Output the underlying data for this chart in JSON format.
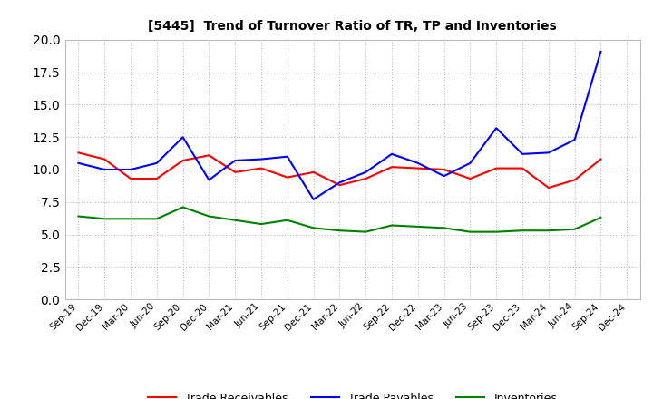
{
  "title": "[5445]  Trend of Turnover Ratio of TR, TP and Inventories",
  "x_labels": [
    "Sep-19",
    "Dec-19",
    "Mar-20",
    "Jun-20",
    "Sep-20",
    "Dec-20",
    "Mar-21",
    "Jun-21",
    "Sep-21",
    "Dec-21",
    "Mar-22",
    "Jun-22",
    "Sep-22",
    "Dec-22",
    "Mar-23",
    "Jun-23",
    "Sep-23",
    "Dec-23",
    "Mar-24",
    "Jun-24",
    "Sep-24",
    "Dec-24"
  ],
  "trade_receivables": [
    11.3,
    10.8,
    9.3,
    9.3,
    10.7,
    11.1,
    9.8,
    10.1,
    9.4,
    9.8,
    8.8,
    9.3,
    10.2,
    10.1,
    10.0,
    9.3,
    10.1,
    10.1,
    8.6,
    9.2,
    10.8,
    null
  ],
  "trade_payables": [
    10.5,
    10.0,
    10.0,
    10.5,
    12.5,
    9.2,
    10.7,
    10.8,
    11.0,
    7.7,
    9.0,
    9.8,
    11.2,
    10.5,
    9.5,
    10.5,
    13.2,
    11.2,
    11.3,
    12.3,
    19.1,
    null
  ],
  "inventories": [
    6.4,
    6.2,
    6.2,
    6.2,
    7.1,
    6.4,
    6.1,
    5.8,
    6.1,
    5.5,
    5.3,
    5.2,
    5.7,
    5.6,
    5.5,
    5.2,
    5.2,
    5.3,
    5.3,
    5.4,
    6.3,
    null
  ],
  "ylim": [
    0.0,
    20.0
  ],
  "yticks": [
    0.0,
    2.5,
    5.0,
    7.5,
    10.0,
    12.5,
    15.0,
    17.5,
    20.0
  ],
  "color_tr": "#FF0000",
  "color_tp": "#0000FF",
  "color_inv": "#008000",
  "legend_labels": [
    "Trade Receivables",
    "Trade Payables",
    "Inventories"
  ],
  "background_color": "#FFFFFF",
  "grid_color": "#BBBBBB"
}
